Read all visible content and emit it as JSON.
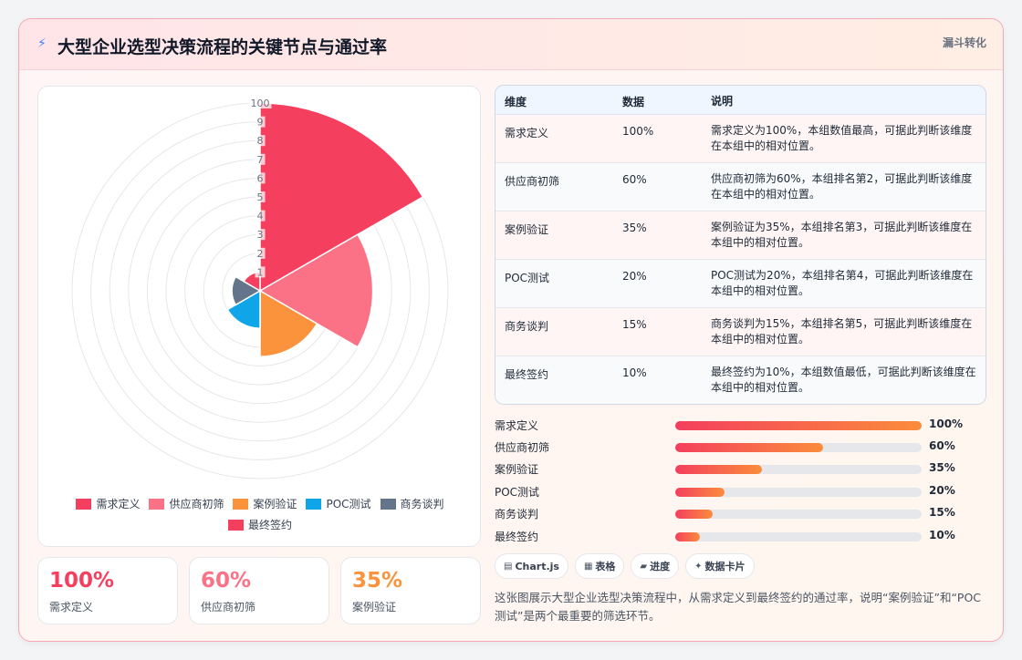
{
  "header": {
    "title": "大型企业选型决策流程的关键节点与通过率",
    "tag": "漏斗转化",
    "bolt_icon": "lightning-icon"
  },
  "chart_data": {
    "type": "polarArea",
    "categories": [
      "需求定义",
      "供应商初筛",
      "案例验证",
      "POC测试",
      "商务谈判",
      "最终签约"
    ],
    "values": [
      100,
      60,
      35,
      20,
      15,
      10
    ],
    "colors": [
      "#f43f5e",
      "#fb7185",
      "#fb923c",
      "#0ea5e9",
      "#64748b",
      "#f43f5e"
    ],
    "r_ticks": [
      "1",
      "2",
      "3",
      "4",
      "5",
      "6",
      "7",
      "8",
      "9",
      "100"
    ],
    "r_max": 100,
    "grid": true,
    "legend_position": "bottom"
  },
  "kpis": [
    {
      "value": "100%",
      "label": "需求定义",
      "color": "#f43f5e"
    },
    {
      "value": "60%",
      "label": "供应商初筛",
      "color": "#fb7185"
    },
    {
      "value": "35%",
      "label": "案例验证",
      "color": "#fb923c"
    }
  ],
  "table": {
    "headers": [
      "维度",
      "数据",
      "说明"
    ],
    "rows": [
      [
        "需求定义",
        "100%",
        "需求定义为100%，本组数值最高，可据此判断该维度在本组中的相对位置。"
      ],
      [
        "供应商初筛",
        "60%",
        "供应商初筛为60%，本组排名第2，可据此判断该维度在本组中的相对位置。"
      ],
      [
        "案例验证",
        "35%",
        "案例验证为35%，本组排名第3，可据此判断该维度在本组中的相对位置。"
      ],
      [
        "POC测试",
        "20%",
        "POC测试为20%，本组排名第4，可据此判断该维度在本组中的相对位置。"
      ],
      [
        "商务谈判",
        "15%",
        "商务谈判为15%，本组排名第5，可据此判断该维度在本组中的相对位置。"
      ],
      [
        "最终签约",
        "10%",
        "最终签约为10%，本组数值最低，可据此判断该维度在本组中的相对位置。"
      ]
    ]
  },
  "progress": [
    {
      "label": "需求定义",
      "value": 100,
      "text": "100%"
    },
    {
      "label": "供应商初筛",
      "value": 60,
      "text": "60%"
    },
    {
      "label": "案例验证",
      "value": 35,
      "text": "35%"
    },
    {
      "label": "POC测试",
      "value": 20,
      "text": "20%"
    },
    {
      "label": "商务谈判",
      "value": 15,
      "text": "15%"
    },
    {
      "label": "最终签约",
      "value": 10,
      "text": "10%"
    }
  ],
  "chips": [
    {
      "icon": "chart-icon",
      "glyph": "▤",
      "label": "Chart.js"
    },
    {
      "icon": "table-icon",
      "glyph": "▦",
      "label": "表格"
    },
    {
      "icon": "progress-icon",
      "glyph": "▰",
      "label": "进度"
    },
    {
      "icon": "card-icon",
      "glyph": "✦",
      "label": "数据卡片"
    }
  ],
  "description": "这张图展示大型企业选型决策流程中，从需求定义到最终签约的通过率，说明“案例验证”和“POC测试”是两个最重要的筛选环节。"
}
